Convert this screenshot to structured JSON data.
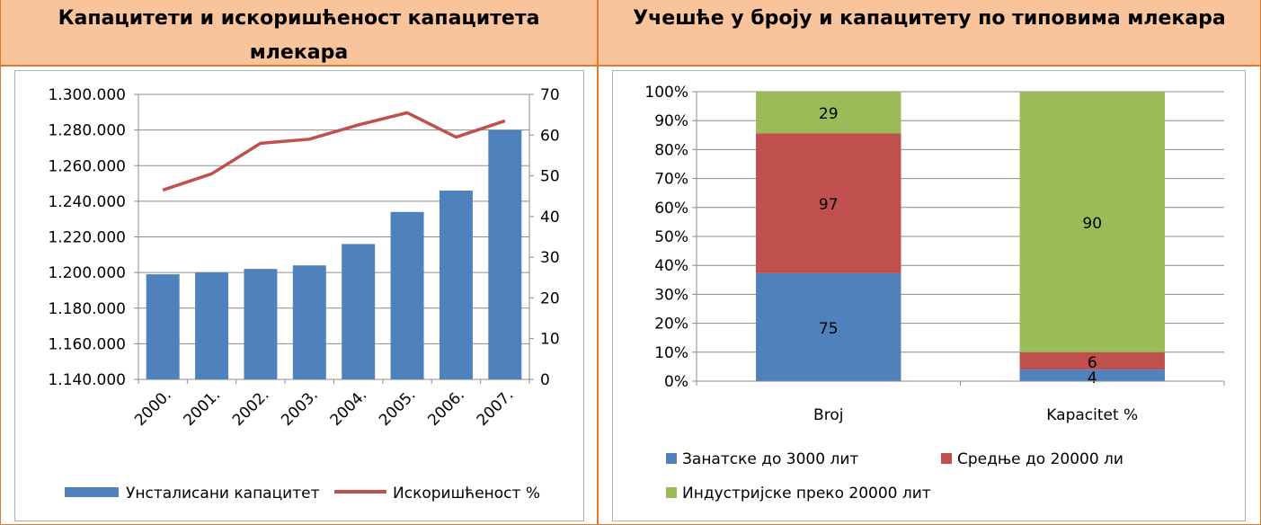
{
  "headers": {
    "left": "Капацитети и искоришћеност капацитета млекара",
    "right": "Учешће у броју и капацитету по типовима млекара"
  },
  "colors": {
    "header_bg": "#f9c49b",
    "border": "#e07a2e",
    "blue": "#4f81bd",
    "red": "#c0504d",
    "green": "#9bbb59"
  },
  "chart_data": [
    {
      "type": "bar+line",
      "categories": [
        "2000.",
        "2001.",
        "2002.",
        "2003.",
        "2004.",
        "2005.",
        "2006.",
        "2007."
      ],
      "series": [
        {
          "name": "Унсталисани капацитет",
          "type": "bar",
          "axis": "left",
          "values": [
            1199000,
            1200000,
            1202000,
            1204000,
            1216000,
            1234000,
            1246000,
            1280000
          ]
        },
        {
          "name": "Искоришћеност %",
          "type": "line",
          "axis": "right",
          "values": [
            46.5,
            50.5,
            58,
            59,
            62.5,
            65.5,
            59.5,
            63.5
          ]
        }
      ],
      "left_axis": {
        "ylim": [
          1140000,
          1300000
        ],
        "ticks": [
          "1.140.000",
          "1.160.000",
          "1.180.000",
          "1.200.000",
          "1.220.000",
          "1.240.000",
          "1.260.000",
          "1.280.000",
          "1.300.000"
        ]
      },
      "right_axis": {
        "ylim": [
          0,
          70
        ],
        "ticks": [
          "0",
          "10",
          "20",
          "30",
          "40",
          "50",
          "60",
          "70"
        ]
      },
      "grid": "horizontal",
      "legend_position": "bottom"
    },
    {
      "type": "stacked-bar-100",
      "categories": [
        "Broj",
        "Kapacitet %"
      ],
      "series": [
        {
          "name": "Занатске до 3000 лит",
          "values": [
            75,
            4
          ]
        },
        {
          "name": "Средње до 20000 ли",
          "values": [
            97,
            6
          ]
        },
        {
          "name": "Индустријске преко 20000 лит",
          "values": [
            29,
            90
          ]
        }
      ],
      "y_ticks": [
        "0%",
        "10%",
        "20%",
        "30%",
        "40%",
        "50%",
        "60%",
        "70%",
        "80%",
        "90%",
        "100%"
      ],
      "ylim": [
        0,
        100
      ],
      "grid": "horizontal",
      "legend_position": "bottom"
    }
  ]
}
